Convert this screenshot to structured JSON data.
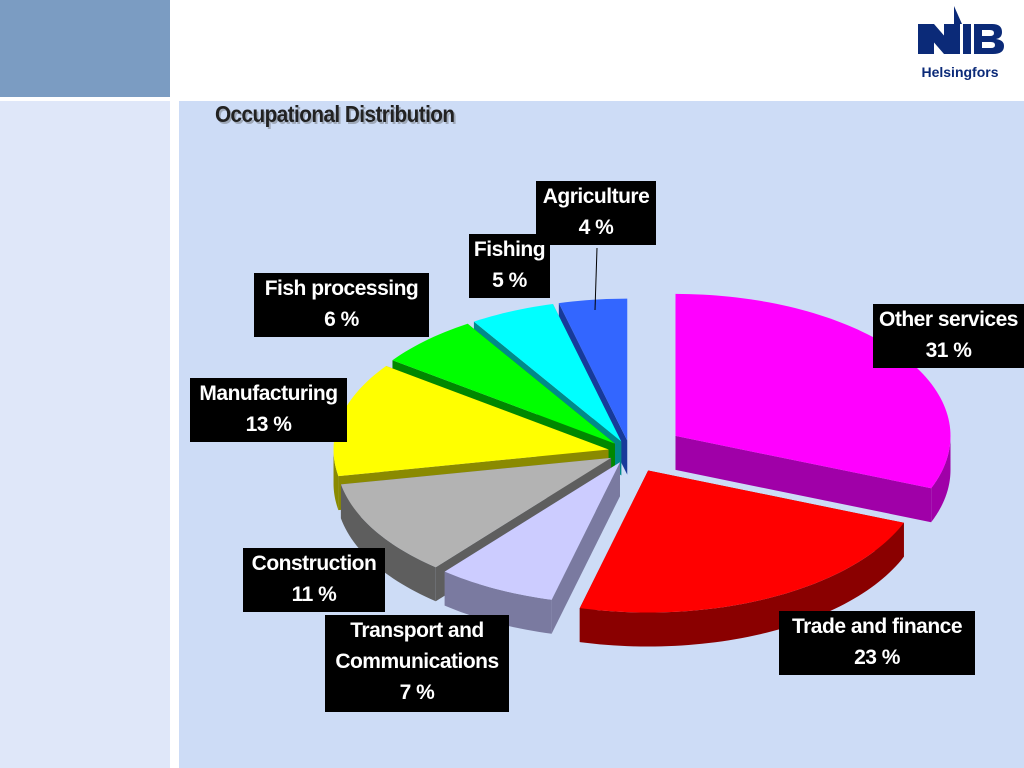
{
  "header": {
    "logo_text": "NIB",
    "logo_city": "Helsingfors"
  },
  "slide": {
    "title": "Occupational Distribution"
  },
  "chart_data": {
    "type": "pie",
    "title": "Occupational Distribution",
    "style": "3d-exploded",
    "start_angle": "12 o'clock, clockwise",
    "slices": [
      {
        "label": "Other services",
        "value": 31,
        "display": "31 %",
        "color": "#ff00ff",
        "side_color": "#a000a8"
      },
      {
        "label": "Trade and finance",
        "value": 23,
        "display": "23 %",
        "color": "#ff0000",
        "side_color": "#8a0000"
      },
      {
        "label_lines": [
          "Transport and",
          "Communications"
        ],
        "label": "Transport and Communications",
        "value": 7,
        "display": "7 %",
        "color": "#ccccff",
        "side_color": "#7a7aa0"
      },
      {
        "label": "Construction",
        "value": 11,
        "display": "11 %",
        "color": "#b3b3b3",
        "side_color": "#5e5e5e"
      },
      {
        "label": "Manufacturing",
        "value": 13,
        "display": "13 %",
        "color": "#ffff00",
        "side_color": "#8a8a00"
      },
      {
        "label": "Fish processing",
        "value": 6,
        "display": "6 %",
        "color": "#00ff00",
        "side_color": "#008800"
      },
      {
        "label": "Fishing",
        "value": 5,
        "display": "5 %",
        "color": "#00ffff",
        "side_color": "#008a8a"
      },
      {
        "label": "Agriculture",
        "value": 4,
        "display": "4 %",
        "color": "#3366ff",
        "side_color": "#173a9a"
      }
    ]
  }
}
